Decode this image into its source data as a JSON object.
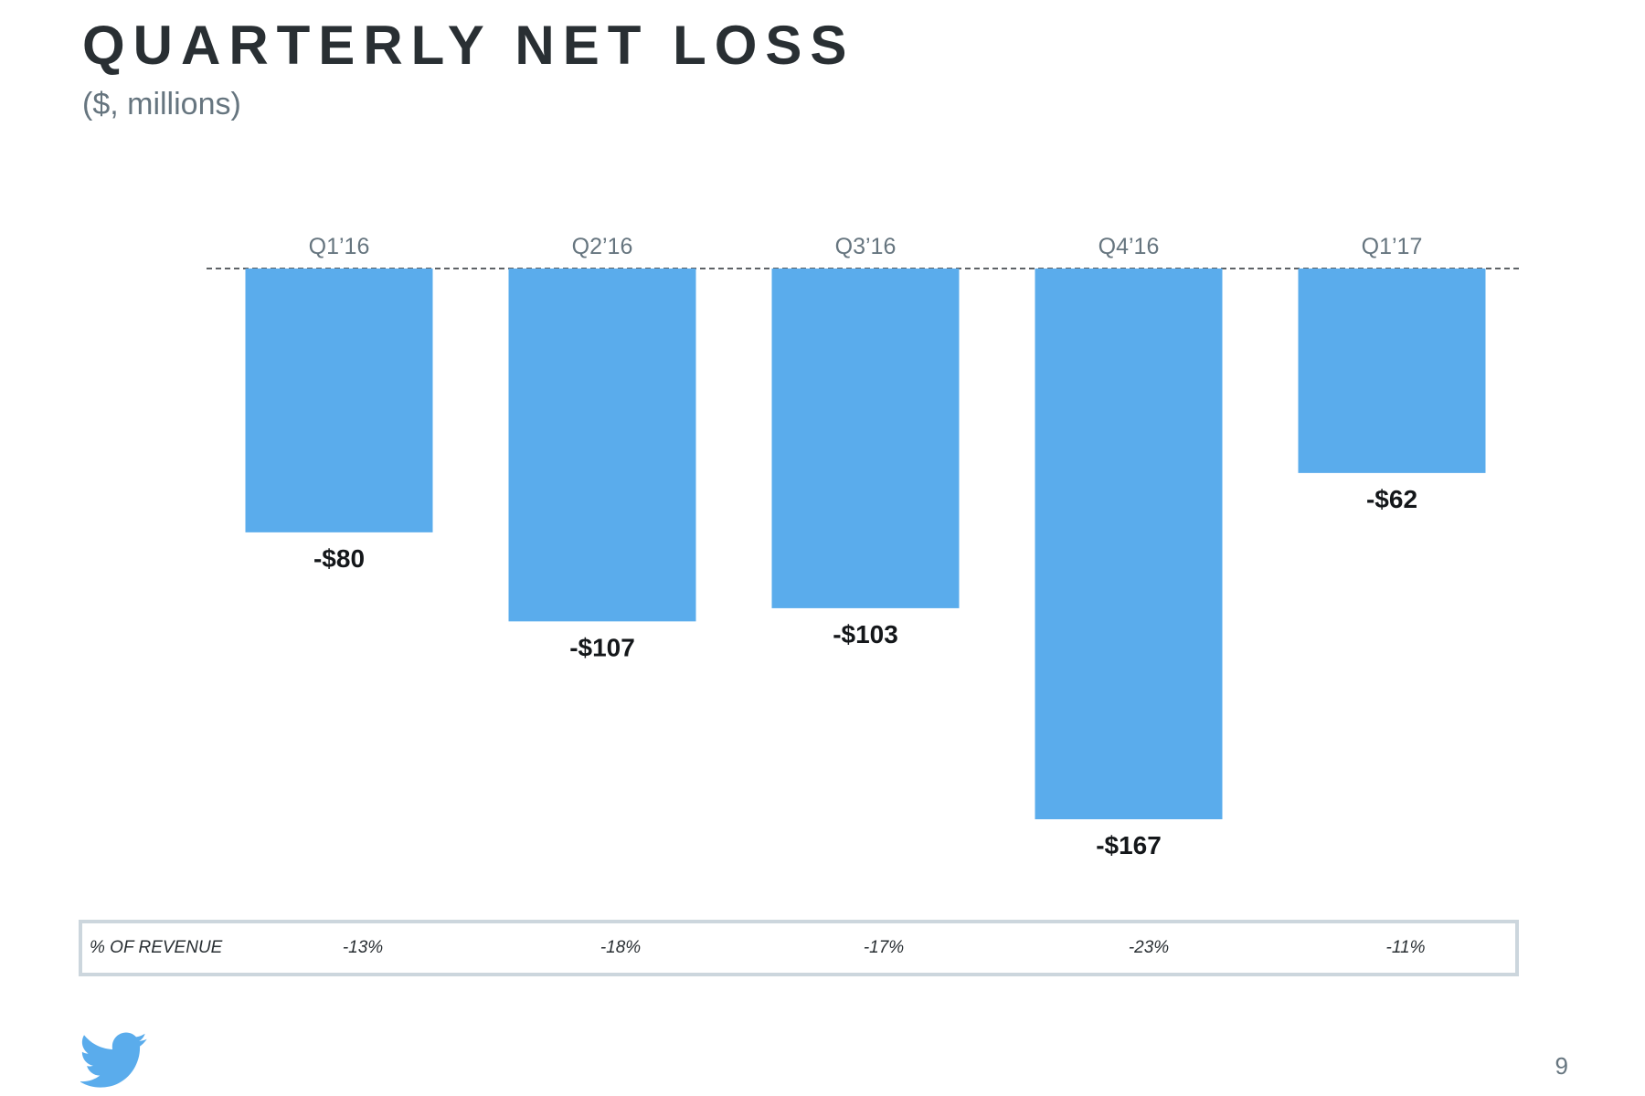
{
  "title": "QUARTERLY NET LOSS",
  "subtitle": "($, millions)",
  "chart_data": {
    "type": "bar",
    "title": "QUARTERLY NET LOSS",
    "subtitle": "($, millions)",
    "categories": [
      "Q1’16",
      "Q2’16",
      "Q3’16",
      "Q4’16",
      "Q1’17"
    ],
    "values": [
      -80,
      -107,
      -103,
      -167,
      -62
    ],
    "data_labels": [
      "-$80",
      "-$107",
      "-$103",
      "-$167",
      "-$62"
    ],
    "ylim": [
      -167,
      0
    ],
    "grid": false,
    "zero_line": "dashed",
    "bar_color": "#5aacec"
  },
  "revenue_row": {
    "label": "% OF REVENUE",
    "values": [
      "-13%",
      "-18%",
      "-17%",
      "-23%",
      "-11%"
    ]
  },
  "footer": {
    "logo_icon": "twitter-bird-icon",
    "logo_color": "#5aacec",
    "page_number": "9"
  }
}
